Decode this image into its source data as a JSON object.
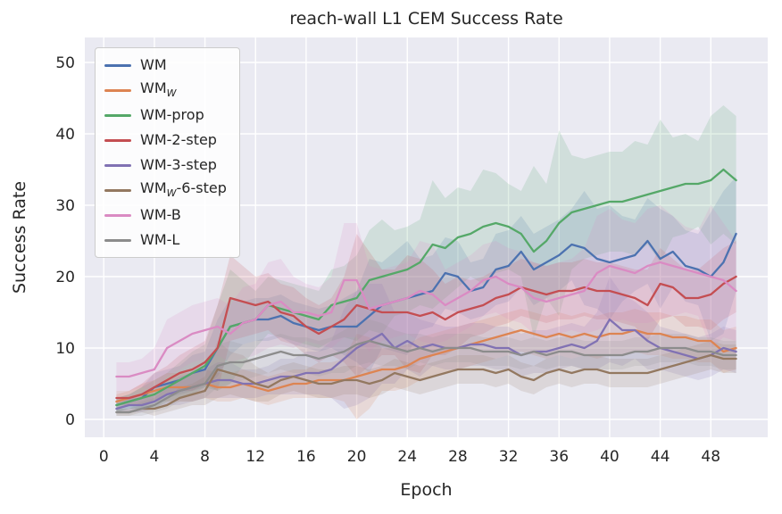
{
  "chart_data": {
    "type": "line",
    "title": "reach-wall L1 CEM Success Rate",
    "xlabel": "Epoch",
    "ylabel": "Success Rate",
    "grid": true,
    "plot_bg": "#eaeaf2",
    "legend_position": "upper left",
    "xlim": [
      -1.5,
      52.5
    ],
    "ylim": [
      -2.5,
      53.5
    ],
    "xticks": [
      0,
      4,
      8,
      12,
      16,
      20,
      24,
      28,
      32,
      36,
      40,
      44,
      48
    ],
    "yticks": [
      0,
      10,
      20,
      30,
      40,
      50
    ],
    "x": [
      1,
      2,
      3,
      4,
      5,
      6,
      7,
      8,
      9,
      10,
      11,
      12,
      13,
      14,
      15,
      16,
      17,
      18,
      19,
      20,
      21,
      22,
      23,
      24,
      25,
      26,
      27,
      28,
      29,
      30,
      31,
      32,
      33,
      34,
      35,
      36,
      37,
      38,
      39,
      40,
      41,
      42,
      43,
      44,
      45,
      46,
      47,
      48,
      49,
      50
    ],
    "series": [
      {
        "name": "WM",
        "color": "#4c72b0",
        "values": [
          2,
          2.5,
          3,
          4.5,
          5,
          5.5,
          6.5,
          7,
          10,
          13,
          13.5,
          14,
          14,
          14.5,
          13.5,
          13,
          12.5,
          13,
          13,
          13,
          14.5,
          16,
          16.5,
          17,
          17.5,
          18,
          20.5,
          20,
          18,
          18.5,
          21,
          21.5,
          23.5,
          21,
          22,
          23,
          24.5,
          24,
          22.5,
          22,
          22.5,
          23,
          25,
          22.5,
          23.5,
          21.5,
          21,
          20,
          22,
          26
        ],
        "band": [
          1,
          1,
          1.5,
          2,
          2,
          2,
          2.5,
          2.5,
          4,
          4,
          3,
          3,
          3,
          3,
          3,
          3,
          3,
          3,
          4,
          5,
          8,
          6,
          7,
          8,
          5,
          5,
          5,
          5,
          4,
          4,
          5,
          5,
          5,
          5,
          5,
          5,
          5,
          8,
          7,
          8,
          6,
          5,
          6,
          7,
          5,
          5,
          5,
          9,
          10,
          8
        ]
      },
      {
        "name": "WM_W",
        "color": "#dd8452",
        "values": [
          2.5,
          3,
          3.5,
          4,
          4.5,
          4.5,
          4.5,
          5,
          4.5,
          4.5,
          5,
          4.5,
          4,
          4.5,
          5,
          5,
          5.5,
          5.5,
          5.5,
          6,
          6.5,
          7,
          7,
          7.5,
          8.5,
          9,
          9.5,
          10,
          10.5,
          11,
          11.5,
          12,
          12.5,
          12,
          11.5,
          12,
          11.5,
          12,
          11.5,
          12,
          12,
          12.5,
          12,
          12,
          11.5,
          11.5,
          11,
          11,
          9.5,
          10
        ],
        "band": [
          1,
          1,
          1.5,
          1.5,
          2,
          2,
          2,
          2,
          2,
          2,
          2,
          2,
          2,
          2,
          2,
          2,
          2.5,
          2.5,
          3,
          6,
          5,
          3,
          3,
          3,
          3,
          3,
          3,
          3,
          3,
          3,
          3,
          3,
          3,
          3,
          3,
          3,
          3,
          3,
          3,
          3,
          3,
          3,
          3,
          3,
          3,
          3,
          3,
          3,
          3,
          3
        ]
      },
      {
        "name": "WM-prop",
        "color": "#55a868",
        "values": [
          2,
          2.5,
          3,
          3.5,
          4.5,
          5.5,
          6.5,
          7.5,
          10,
          13,
          13.5,
          14,
          16,
          15.5,
          15,
          14.5,
          14,
          16,
          16.5,
          17,
          19.5,
          20,
          20.5,
          21,
          22,
          24.5,
          24,
          25.5,
          26,
          27,
          27.5,
          27,
          26,
          23.5,
          25,
          27.5,
          29,
          29.5,
          30,
          30.5,
          30.5,
          31,
          31.5,
          32,
          32.5,
          33,
          33,
          33.5,
          35,
          33.5
        ],
        "band": [
          1,
          1,
          1.5,
          2,
          2,
          2.5,
          3,
          3,
          6,
          8,
          6,
          4,
          4,
          4,
          4,
          4,
          4,
          5,
          5,
          6,
          7,
          8,
          6,
          6,
          6,
          9,
          7,
          7,
          6,
          8,
          7,
          6,
          6,
          12,
          8,
          13,
          8,
          7,
          7,
          7,
          7,
          8,
          7,
          10,
          7,
          7,
          6,
          9,
          9,
          9
        ]
      },
      {
        "name": "WM-2-step",
        "color": "#c44e52",
        "values": [
          3,
          3,
          3.5,
          4.5,
          5.5,
          6.5,
          7,
          8,
          10,
          17,
          16.5,
          16,
          16.5,
          15,
          14.5,
          13,
          12,
          13,
          14,
          16,
          15.5,
          15,
          15,
          15,
          14.5,
          15,
          14,
          15,
          15.5,
          16,
          17,
          17.5,
          18.5,
          18,
          17.5,
          18,
          18,
          18.5,
          18,
          18,
          17.5,
          17,
          16,
          19,
          18.5,
          17,
          17,
          17.5,
          19,
          20
        ],
        "band": [
          1,
          1,
          1.5,
          2,
          2,
          2.5,
          3,
          3,
          6,
          6,
          5,
          4,
          4,
          4,
          4,
          4,
          4,
          4,
          6,
          10,
          8,
          6,
          6,
          8,
          8,
          6,
          5,
          5,
          4,
          4,
          4,
          4,
          4,
          4,
          4,
          4,
          4,
          4,
          4,
          4,
          4,
          4,
          5,
          5,
          4,
          4,
          4,
          5,
          5,
          5
        ]
      },
      {
        "name": "WM-3-step",
        "color": "#8172b3",
        "values": [
          1.5,
          2,
          2,
          2.5,
          3.5,
          4,
          4.5,
          5,
          5.5,
          5.5,
          5,
          5,
          5.5,
          6,
          6,
          6.5,
          6.5,
          7,
          8.5,
          10,
          11,
          12,
          10,
          11,
          10,
          10.5,
          10,
          10,
          10.5,
          10.5,
          10,
          10,
          9,
          9.5,
          9.5,
          10,
          10.5,
          10,
          11,
          14,
          12.5,
          12.5,
          11,
          10,
          9.5,
          9,
          8.5,
          9,
          10,
          9.5
        ],
        "band": [
          0.5,
          1,
          1,
          1,
          1.5,
          2,
          2,
          2,
          2.5,
          2.5,
          2,
          2,
          2,
          2.5,
          2.5,
          3,
          3,
          4,
          7,
          8,
          8,
          7,
          5,
          4,
          4,
          3,
          3,
          3,
          3,
          3,
          3,
          3,
          3,
          3,
          3,
          3,
          3,
          3,
          4,
          6,
          5,
          4,
          4,
          3,
          3,
          3,
          3,
          3,
          3,
          3
        ]
      },
      {
        "name": "WM_W-6-step",
        "color": "#937860",
        "values": [
          1,
          1,
          1.5,
          1.5,
          2,
          3,
          3.5,
          4,
          7,
          6.5,
          6,
          5,
          4.5,
          5.5,
          6,
          5.5,
          5,
          5,
          5.5,
          5.5,
          5,
          5.5,
          6.5,
          6,
          5.5,
          6,
          6.5,
          7,
          7,
          7,
          6.5,
          7,
          6,
          5.5,
          6.5,
          7,
          6.5,
          7,
          7,
          6.5,
          6.5,
          6.5,
          6.5,
          7,
          7.5,
          8,
          8.5,
          9,
          8.5,
          8.5
        ],
        "band": [
          0.5,
          0.5,
          0.5,
          1,
          1,
          1.5,
          1.5,
          2,
          4,
          3,
          3,
          2.5,
          2,
          2,
          2,
          2,
          2,
          2,
          2,
          2,
          2,
          2,
          2,
          2,
          2,
          2,
          2,
          2,
          2,
          2,
          2,
          2,
          2,
          2,
          2,
          2,
          2,
          2,
          2,
          2,
          2,
          2,
          2,
          2,
          2,
          2,
          2,
          2,
          2,
          2
        ]
      },
      {
        "name": "WM-B",
        "color": "#da8bc3",
        "values": [
          6,
          6,
          6.5,
          7,
          10,
          11,
          12,
          12.5,
          13,
          12,
          13.5,
          14,
          16,
          16.5,
          15,
          15,
          14.5,
          15,
          19.5,
          19.5,
          15.5,
          16,
          16.5,
          17,
          18,
          17.5,
          16,
          17,
          18,
          19.5,
          20,
          19,
          18.5,
          17,
          16.5,
          17,
          17.5,
          18,
          20.5,
          21.5,
          21,
          20.5,
          21.5,
          22,
          21.5,
          21,
          20.5,
          20,
          19.5,
          18
        ],
        "band": [
          2,
          2,
          2,
          3,
          4,
          4,
          4,
          4,
          4,
          4,
          5,
          5,
          6,
          6,
          5,
          4,
          4,
          5,
          8,
          8,
          6,
          5,
          5,
          5,
          7,
          7,
          5,
          5,
          5,
          5,
          5,
          5,
          5,
          5,
          5,
          5,
          5,
          6,
          8,
          8,
          7,
          7,
          8,
          8,
          7,
          6,
          6,
          10,
          8,
          7
        ]
      },
      {
        "name": "WM-L",
        "color": "#8c8c8c",
        "values": [
          1,
          1,
          1.5,
          2,
          3,
          4,
          4.5,
          5,
          7.5,
          8,
          8,
          8.5,
          9,
          9.5,
          9,
          9,
          8.5,
          9,
          9.5,
          10.5,
          11,
          10.5,
          10,
          9.5,
          10,
          9.5,
          10,
          10,
          10,
          9.5,
          9.5,
          9.5,
          9,
          9.5,
          9,
          9.5,
          9.5,
          9,
          9,
          9,
          9,
          9.5,
          9.5,
          10,
          10,
          10,
          9.5,
          9.5,
          9,
          9
        ],
        "band": [
          0.5,
          0.5,
          1,
          1,
          1.5,
          1.5,
          2,
          2,
          3,
          3,
          2.5,
          2.5,
          2.5,
          2.5,
          2.5,
          2.5,
          2.5,
          2.5,
          3,
          3,
          3,
          3,
          2.5,
          2.5,
          2,
          2,
          2,
          2,
          2,
          2,
          2,
          2,
          2,
          2,
          2,
          2,
          2,
          2,
          2,
          2,
          2,
          2,
          2,
          2,
          2,
          2,
          2,
          2,
          2,
          2
        ]
      }
    ]
  }
}
